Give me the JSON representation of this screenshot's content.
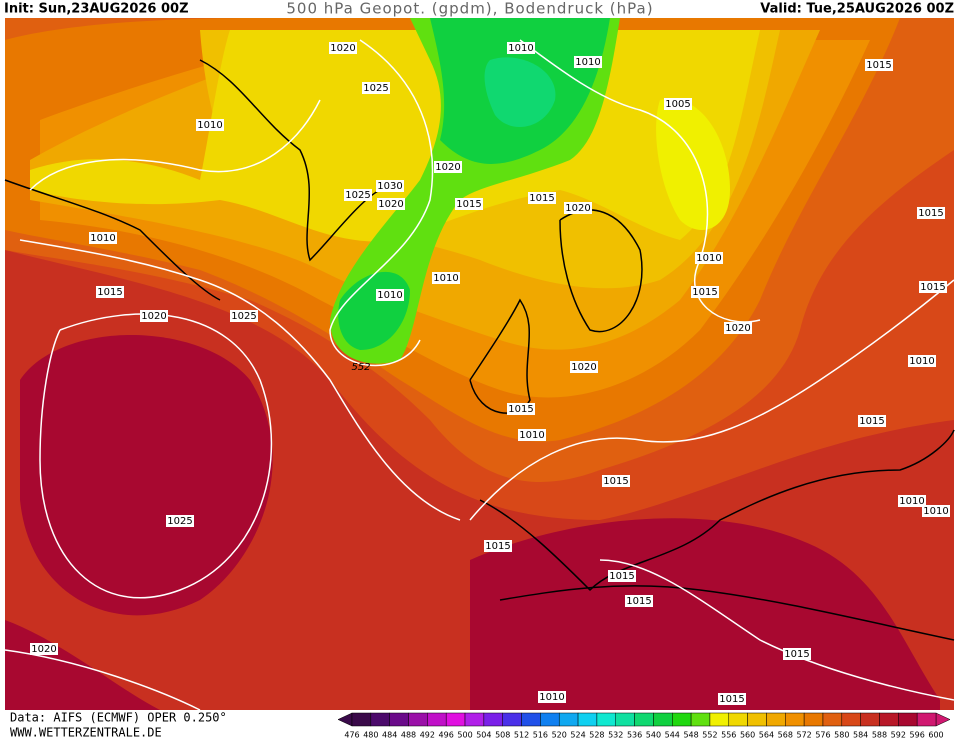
{
  "header": {
    "init": "Init: Sun,23AUG2026 00Z",
    "title": "500 hPa Geopot. (gpdm), Bodendruck (hPa)",
    "valid": "Valid: Tue,25AUG2026 00Z"
  },
  "isobar_labels": [
    "1020",
    "1010",
    "1010",
    "1015",
    "1025",
    "1010",
    "1005",
    "1020",
    "1030",
    "1025",
    "1020",
    "1015",
    "1015",
    "1020",
    "1015",
    "1010",
    "1010",
    "1010",
    "1015",
    "1015",
    "1015",
    "1010",
    "1020",
    "1025",
    "1020",
    "1010",
    "1020",
    "1015",
    "1015",
    "1010",
    "1015",
    "1010",
    "1010",
    "1025",
    "1015",
    "1015",
    "1015",
    "1020",
    "1015",
    "1010",
    "1015"
  ],
  "contour_labels": [
    "552"
  ],
  "footer": {
    "source": "Data: AIFS (ECMWF) OPER 0.250°",
    "site": "WWW.WETTERZENTRALE.DE"
  },
  "colorbar": {
    "values": [
      476,
      480,
      484,
      488,
      492,
      496,
      500,
      504,
      508,
      512,
      516,
      520,
      524,
      528,
      532,
      536,
      540,
      544,
      548,
      552,
      556,
      560,
      564,
      568,
      572,
      576,
      580,
      584,
      588,
      592,
      596,
      600
    ],
    "colors": [
      "#3a0a4a",
      "#4b0a6b",
      "#6a0a8a",
      "#9a10a8",
      "#c010c8",
      "#e010e0",
      "#b020e8",
      "#7a20e8",
      "#4a30e8",
      "#2050e8",
      "#1080f0",
      "#10a8f0",
      "#10d0f0",
      "#10e8d0",
      "#10e0a0",
      "#10d870",
      "#10d040",
      "#20d810",
      "#60e010",
      "#f0f000",
      "#f0d800",
      "#f0c000",
      "#f0a800",
      "#f09000",
      "#e87800",
      "#e06010",
      "#d84818",
      "#c83020",
      "#b81828",
      "#a80830",
      "#d01870"
    ]
  }
}
